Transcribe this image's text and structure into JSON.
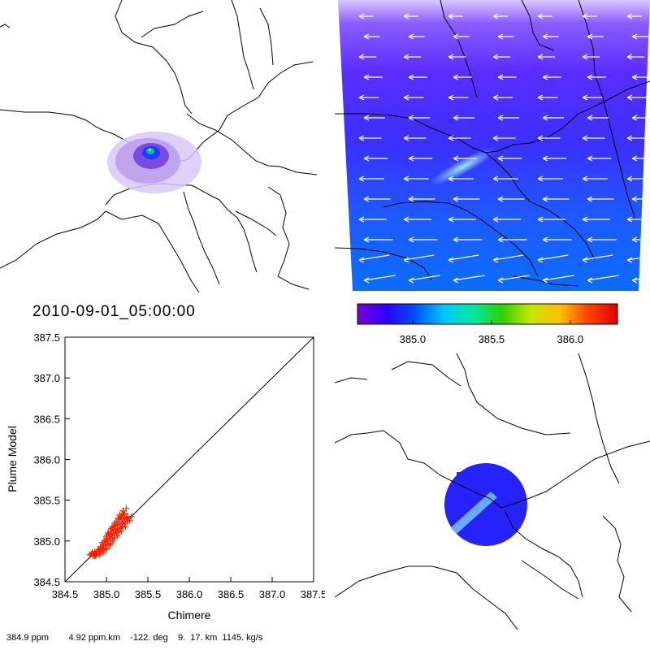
{
  "timestamp": "2010-09-01_05:00:00",
  "colorbar": {
    "colors": [
      "#7a00d8",
      "#2b00ff",
      "#0050ff",
      "#00c8ff",
      "#00e8a0",
      "#30d000",
      "#c8e800",
      "#ffc000",
      "#ff4000",
      "#e00000"
    ],
    "tick_labels": [
      "385.0",
      "385.5",
      "386.0"
    ],
    "range": [
      384.65,
      386.3
    ]
  },
  "footer": {
    "concentration": "384.9 ppm",
    "column": "4.92 ppm.km",
    "angle": "-122. deg",
    "params": "9.  17. km",
    "flux": "1145. kg/s"
  },
  "chart_data": {
    "type": "scatter",
    "xlabel": "Chimere",
    "ylabel": "Plume Model",
    "xlim": [
      384.5,
      387.5
    ],
    "ylim": [
      384.5,
      387.5
    ],
    "x_ticks": [
      "384.5",
      "385.0",
      "385.5",
      "386.0",
      "386.5",
      "387.0",
      "387.5"
    ],
    "y_ticks": [
      "384.5",
      "385.0",
      "385.5",
      "386.0",
      "386.5",
      "387.0",
      "387.5"
    ],
    "reference_line": [
      [
        384.5,
        384.5
      ],
      [
        387.5,
        387.5
      ]
    ],
    "marker": "+",
    "marker_color": "#ff2000",
    "points": [
      [
        384.8,
        384.83
      ],
      [
        384.82,
        384.84
      ],
      [
        384.84,
        384.84
      ],
      [
        384.86,
        384.83
      ],
      [
        384.88,
        384.84
      ],
      [
        384.9,
        384.85
      ],
      [
        384.83,
        384.86
      ],
      [
        384.86,
        384.87
      ],
      [
        384.89,
        384.88
      ],
      [
        384.92,
        384.89
      ],
      [
        384.95,
        384.9
      ],
      [
        384.88,
        384.86
      ],
      [
        384.91,
        384.87
      ],
      [
        384.94,
        384.88
      ],
      [
        384.97,
        384.89
      ],
      [
        385.0,
        384.91
      ],
      [
        384.93,
        384.93
      ],
      [
        384.96,
        384.94
      ],
      [
        384.99,
        384.95
      ],
      [
        385.02,
        384.96
      ],
      [
        385.05,
        384.97
      ],
      [
        384.95,
        384.98
      ],
      [
        384.98,
        385.0
      ],
      [
        385.01,
        385.01
      ],
      [
        385.04,
        385.02
      ],
      [
        385.07,
        385.03
      ],
      [
        385.1,
        385.04
      ],
      [
        385.0,
        385.05
      ],
      [
        385.03,
        385.07
      ],
      [
        385.06,
        385.08
      ],
      [
        385.09,
        385.09
      ],
      [
        385.12,
        385.1
      ],
      [
        385.15,
        385.11
      ],
      [
        385.02,
        385.1
      ],
      [
        385.05,
        385.12
      ],
      [
        385.08,
        385.13
      ],
      [
        385.11,
        385.14
      ],
      [
        385.14,
        385.15
      ],
      [
        385.17,
        385.16
      ],
      [
        385.2,
        385.17
      ],
      [
        385.07,
        385.17
      ],
      [
        385.1,
        385.19
      ],
      [
        385.13,
        385.2
      ],
      [
        385.16,
        385.21
      ],
      [
        385.19,
        385.22
      ],
      [
        385.22,
        385.23
      ],
      [
        385.25,
        385.24
      ],
      [
        385.12,
        385.24
      ],
      [
        385.15,
        385.26
      ],
      [
        385.18,
        385.27
      ],
      [
        385.21,
        385.28
      ],
      [
        385.24,
        385.29
      ],
      [
        385.16,
        385.32
      ],
      [
        385.19,
        385.33
      ],
      [
        385.22,
        385.34
      ],
      [
        385.26,
        385.3
      ],
      [
        385.3,
        385.3
      ],
      [
        385.2,
        385.37
      ],
      [
        385.24,
        385.4
      ],
      [
        385.14,
        385.28
      ],
      [
        385.1,
        385.22
      ],
      [
        385.06,
        385.15
      ],
      [
        385.03,
        385.09
      ],
      [
        385.0,
        385.03
      ],
      [
        384.97,
        384.98
      ],
      [
        384.94,
        384.92
      ],
      [
        384.91,
        384.88
      ],
      [
        385.28,
        385.25
      ],
      [
        385.23,
        385.18
      ],
      [
        385.18,
        385.12
      ],
      [
        385.13,
        385.06
      ],
      [
        385.08,
        385.0
      ],
      [
        385.04,
        384.95
      ],
      [
        385.0,
        384.9
      ],
      [
        384.96,
        384.86
      ],
      [
        384.92,
        384.83
      ],
      [
        384.86,
        384.82
      ],
      [
        384.84,
        384.82
      ],
      [
        384.87,
        384.82
      ],
      [
        385.17,
        385.3
      ],
      [
        385.09,
        385.18
      ],
      [
        385.01,
        385.07
      ],
      [
        385.21,
        385.32
      ],
      [
        385.26,
        385.27
      ]
    ]
  }
}
